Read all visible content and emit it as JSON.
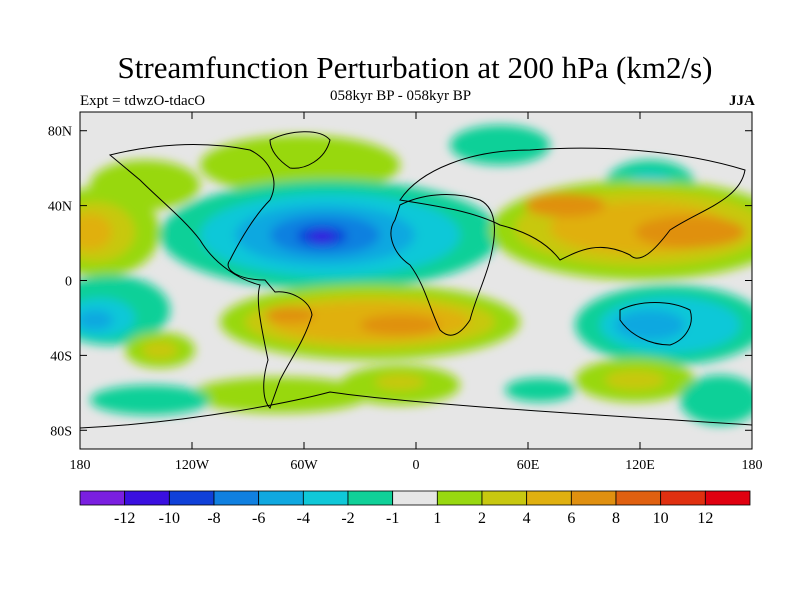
{
  "header": {
    "title": "Streamfunction Perturbation at 200 hPa (km2/s)",
    "left_label": "Expt = tdwzO-tdacO",
    "center_label": "058kyr BP - 058kyr BP",
    "right_label": "JJA"
  },
  "axes": {
    "lat_ticks": [
      {
        "label": "80N",
        "value": 80
      },
      {
        "label": "40N",
        "value": 40
      },
      {
        "label": "0",
        "value": 0
      },
      {
        "label": "40S",
        "value": -40
      },
      {
        "label": "80S",
        "value": -80
      }
    ],
    "lon_ticks": [
      {
        "label": "180",
        "value": -180
      },
      {
        "label": "120W",
        "value": -120
      },
      {
        "label": "60W",
        "value": -60
      },
      {
        "label": "0",
        "value": 0
      },
      {
        "label": "60E",
        "value": 60
      },
      {
        "label": "120E",
        "value": 120
      },
      {
        "label": "180",
        "value": 180
      }
    ],
    "lon_range": [
      -180,
      180
    ],
    "lat_range": [
      -90,
      90
    ]
  },
  "colorbar": {
    "colors": [
      "#7a1fe0",
      "#3a0fe0",
      "#1040d8",
      "#1080e0",
      "#10a8e0",
      "#10c8d8",
      "#10d098",
      "#e6e6e6",
      "#98d810",
      "#c8c810",
      "#e0b010",
      "#e09010",
      "#e06010",
      "#e03010",
      "#e00010"
    ],
    "labels": [
      "-12",
      "-10",
      "-8",
      "-6",
      "-4",
      "-2",
      "-1",
      "1",
      "2",
      "4",
      "6",
      "8",
      "10",
      "12"
    ]
  },
  "colors": {
    "background": "#e6e6e6",
    "coast": "#000000"
  }
}
